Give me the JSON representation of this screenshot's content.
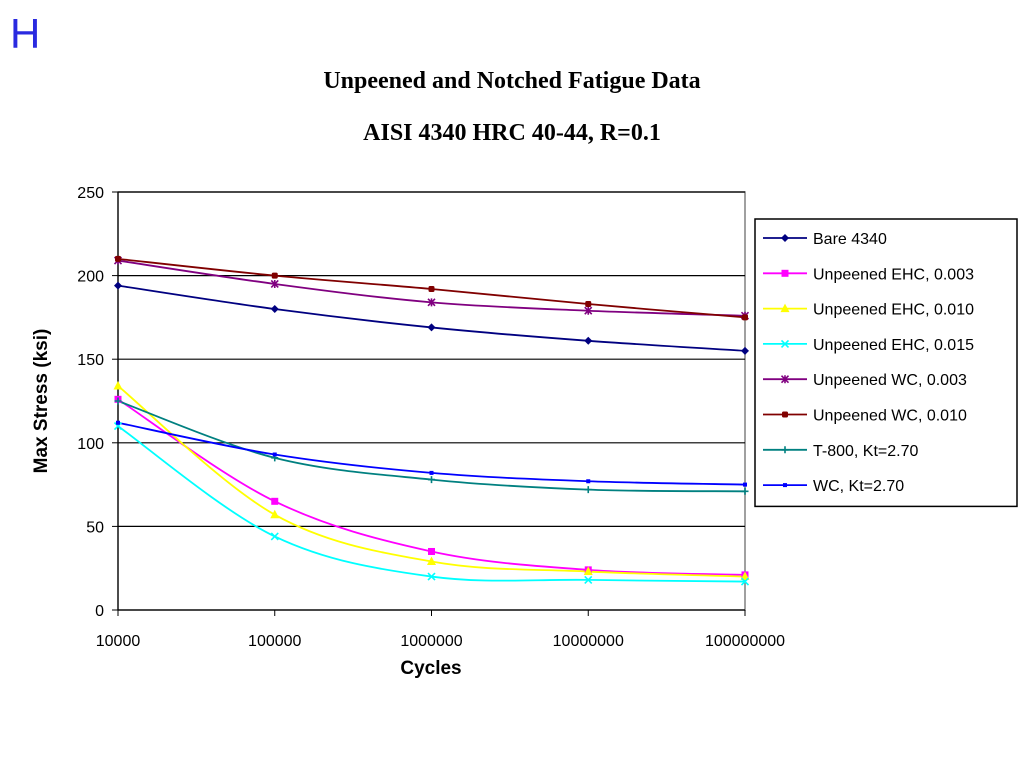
{
  "slide_letter": "H",
  "chart_data": {
    "type": "line",
    "title": "Unpeened and Notched Fatigue Data",
    "subtitle": "AISI 4340 HRC 40-44, R=0.1",
    "xlabel": "Cycles",
    "ylabel": "Max Stress (ksi)",
    "xscale": "log",
    "xlim": [
      10000,
      100000000
    ],
    "ylim": [
      0,
      250
    ],
    "x_ticks": [
      "10000",
      "100000",
      "1000000",
      "10000000",
      "100000000"
    ],
    "y_ticks": [
      "0",
      "50",
      "100",
      "150",
      "200",
      "250"
    ],
    "grid": "horizontal",
    "legend_position": "right",
    "series": [
      {
        "name": "Bare 4340",
        "color": "#000080",
        "marker": "diamond",
        "x": [
          10000,
          100000,
          1000000,
          10000000,
          100000000
        ],
        "y": [
          194,
          180,
          169,
          161,
          155
        ]
      },
      {
        "name": "Unpeened EHC, 0.003",
        "color": "#ff00ff",
        "marker": "square",
        "x": [
          10000,
          100000,
          1000000,
          10000000,
          100000000
        ],
        "y": [
          126,
          65,
          35,
          24,
          21
        ]
      },
      {
        "name": "Unpeened EHC, 0.010",
        "color": "#ffff00",
        "marker": "triangle",
        "x": [
          10000,
          100000,
          1000000,
          10000000,
          100000000
        ],
        "y": [
          134,
          57,
          29,
          23,
          20
        ]
      },
      {
        "name": "Unpeened EHC, 0.015",
        "color": "#00ffff",
        "marker": "x",
        "x": [
          10000,
          100000,
          1000000,
          10000000,
          100000000
        ],
        "y": [
          110,
          44,
          20,
          18,
          17
        ]
      },
      {
        "name": "Unpeened WC, 0.003",
        "color": "#800080",
        "marker": "star",
        "x": [
          10000,
          100000,
          1000000,
          10000000,
          100000000
        ],
        "y": [
          209,
          195,
          184,
          179,
          176
        ]
      },
      {
        "name": "Unpeened WC, 0.010",
        "color": "#800000",
        "marker": "circle",
        "x": [
          10000,
          100000,
          1000000,
          10000000,
          100000000
        ],
        "y": [
          210,
          200,
          192,
          183,
          175
        ]
      },
      {
        "name": "T-800, Kt=2.70",
        "color": "#008080",
        "marker": "plus",
        "x": [
          10000,
          100000,
          1000000,
          10000000,
          100000000
        ],
        "y": [
          125,
          91,
          78,
          72,
          71
        ]
      },
      {
        "name": "WC, Kt=2.70",
        "color": "#0000ff",
        "marker": "dot",
        "x": [
          10000,
          100000,
          1000000,
          10000000,
          100000000
        ],
        "y": [
          112,
          93,
          82,
          77,
          75
        ]
      }
    ]
  }
}
